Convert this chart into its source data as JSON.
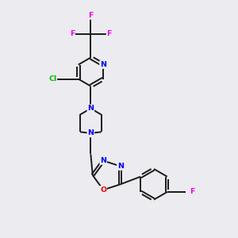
{
  "background_color": "#ebebf0",
  "bond_color": "#1a1a1a",
  "atom_colors": {
    "N": "#0000ee",
    "O": "#ee0000",
    "F": "#ee00ee",
    "Cl": "#00bb00",
    "C": "#1a1a1a"
  },
  "figsize": [
    3.0,
    3.0
  ],
  "dpi": 100,
  "lw": 1.4,
  "fs": 6.8
}
